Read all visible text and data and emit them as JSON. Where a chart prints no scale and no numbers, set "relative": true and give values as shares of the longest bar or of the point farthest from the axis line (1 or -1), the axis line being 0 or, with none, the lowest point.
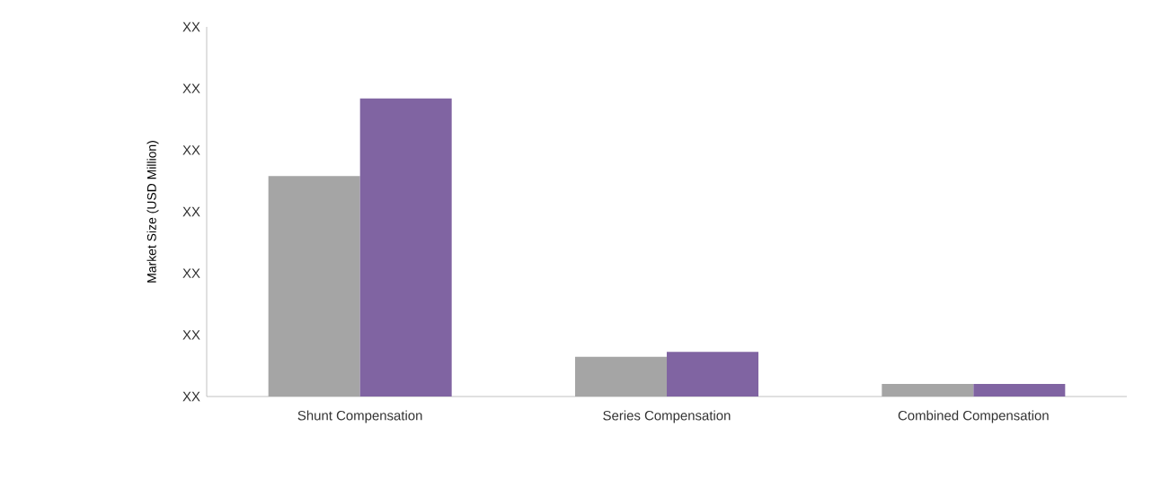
{
  "chart_data": {
    "type": "bar",
    "ylabel": "Market Size (USD Million)",
    "categories": [
      "Shunt Compensation",
      "Series Compensation",
      "Combined Compensation"
    ],
    "relative": true,
    "series": [
      {
        "color": "#a5a5a5",
        "values": [
          0.74,
          0.133,
          0.042
        ]
      },
      {
        "color": "#8064a2",
        "values": [
          1,
          0.15,
          0.042
        ]
      }
    ],
    "annotations": [
      "XX",
      "XX",
      "XX",
      "XX",
      "XX",
      "XX",
      "XX"
    ]
  }
}
